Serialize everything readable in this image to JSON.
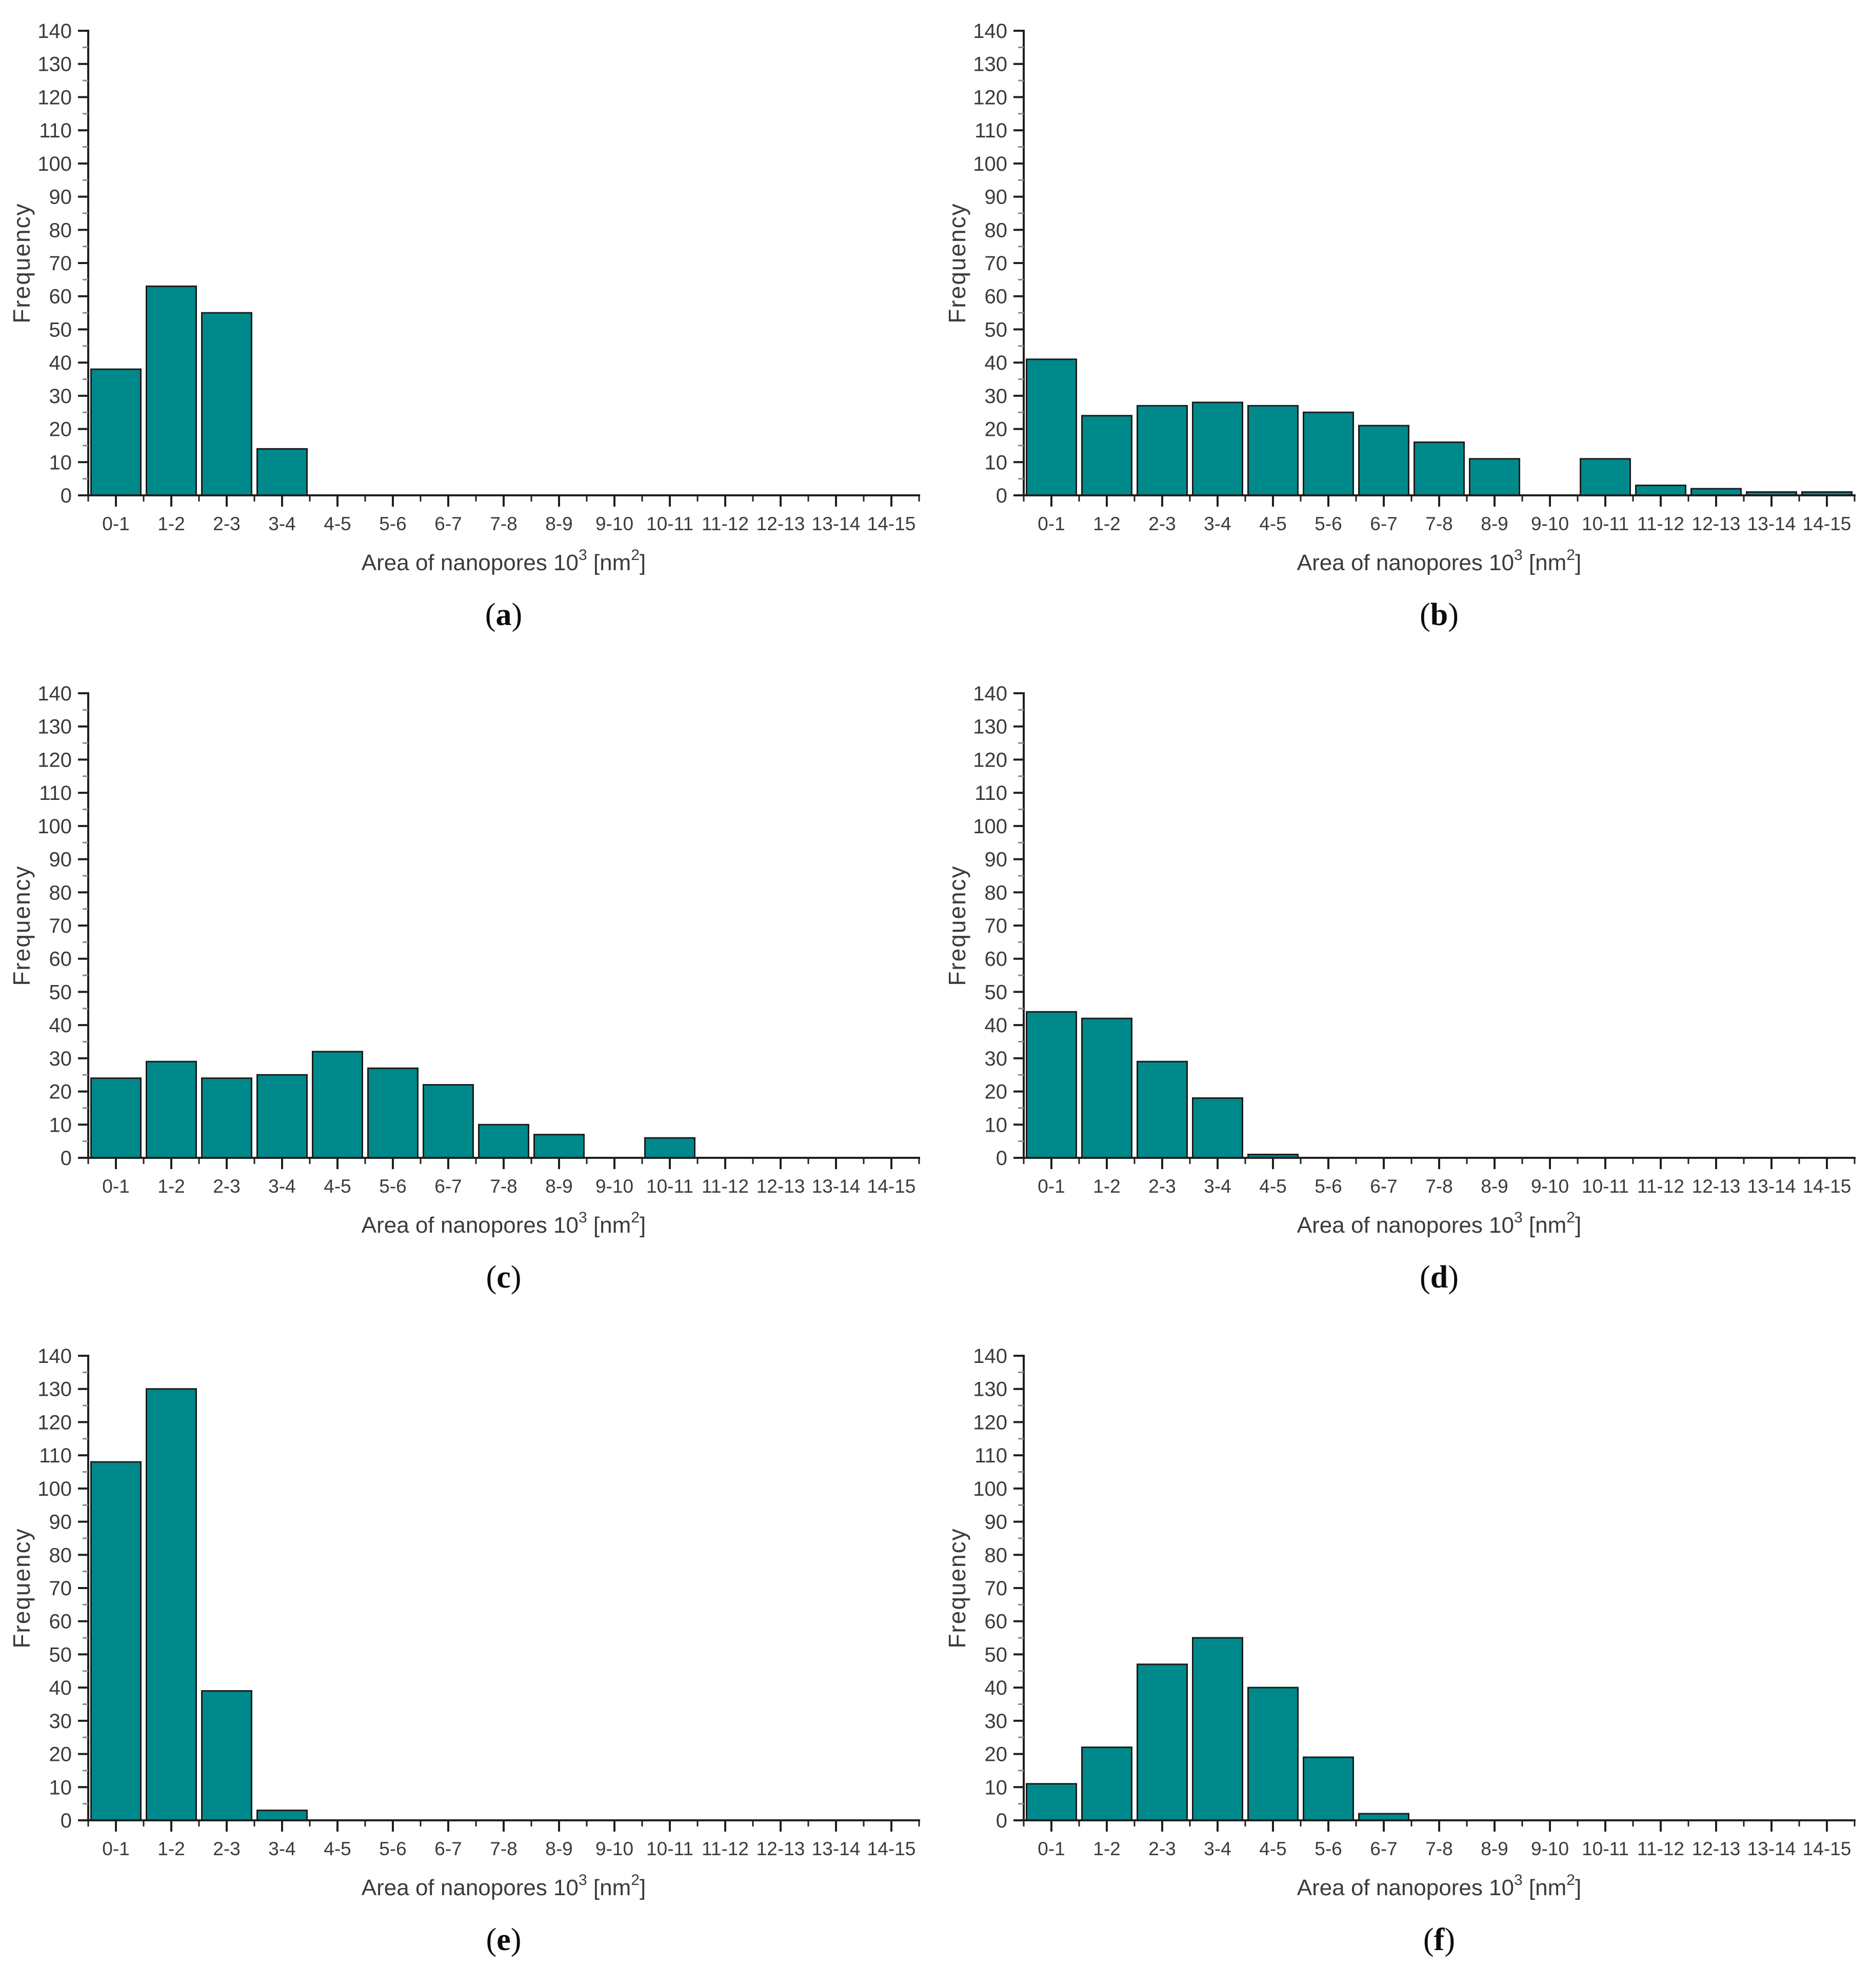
{
  "figure": {
    "background": "#ffffff",
    "bar_fill": "#00898b",
    "bar_stroke": "#1c1c1c",
    "axis_color": "#1f1f1f",
    "tick_label_color": "#3a3a40",
    "minor_tick_color": "#8a8a8a",
    "ylabel": "Frequency",
    "xlabel_main": "Area of nanopores 10",
    "xlabel_sup1": "3",
    "xlabel_mid": " [nm",
    "xlabel_sup2": "2",
    "xlabel_end": "]",
    "caption_open": "(",
    "caption_close": ")",
    "y_axis": {
      "min": 0,
      "max": 140,
      "major_step": 10,
      "minor_step": 5
    }
  },
  "chart_data": [
    {
      "type": "bar",
      "panel_letter": "a",
      "title": "",
      "ylabel": "Frequency",
      "xlabel": "Area of nanopores 10³ [nm²]",
      "ylim": [
        0,
        140
      ],
      "grid": false,
      "legend": "none",
      "categories": [
        "0-1",
        "1-2",
        "2-3",
        "3-4",
        "4-5",
        "5-6",
        "6-7",
        "7-8",
        "8-9",
        "9-10",
        "10-11",
        "11-12",
        "12-13",
        "13-14",
        "14-15"
      ],
      "values": [
        38,
        63,
        55,
        14,
        0,
        0,
        0,
        0,
        0,
        0,
        0,
        0,
        0,
        0,
        0
      ]
    },
    {
      "type": "bar",
      "panel_letter": "b",
      "title": "",
      "ylabel": "Frequency",
      "xlabel": "Area of nanopores 10³ [nm²]",
      "ylim": [
        0,
        140
      ],
      "grid": false,
      "legend": "none",
      "categories": [
        "0-1",
        "1-2",
        "2-3",
        "3-4",
        "4-5",
        "5-6",
        "6-7",
        "7-8",
        "8-9",
        "9-10",
        "10-11",
        "11-12",
        "12-13",
        "13-14",
        "14-15"
      ],
      "values": [
        41,
        24,
        27,
        28,
        27,
        25,
        21,
        16,
        11,
        0,
        11,
        3,
        2,
        1,
        1
      ]
    },
    {
      "type": "bar",
      "panel_letter": "c",
      "title": "",
      "ylabel": "Frequency",
      "xlabel": "Area of nanopores 10³ [nm²]",
      "ylim": [
        0,
        140
      ],
      "grid": false,
      "legend": "none",
      "categories": [
        "0-1",
        "1-2",
        "2-3",
        "3-4",
        "4-5",
        "5-6",
        "6-7",
        "7-8",
        "8-9",
        "9-10",
        "10-11",
        "11-12",
        "12-13",
        "13-14",
        "14-15"
      ],
      "values": [
        24,
        29,
        24,
        25,
        32,
        27,
        22,
        10,
        7,
        0,
        6,
        0,
        0,
        0,
        0
      ]
    },
    {
      "type": "bar",
      "panel_letter": "d",
      "title": "",
      "ylabel": "Frequency",
      "xlabel": "Area of nanopores 10³ [nm²]",
      "ylim": [
        0,
        140
      ],
      "grid": false,
      "legend": "none",
      "categories": [
        "0-1",
        "1-2",
        "2-3",
        "3-4",
        "4-5",
        "5-6",
        "6-7",
        "7-8",
        "8-9",
        "9-10",
        "10-11",
        "11-12",
        "12-13",
        "13-14",
        "14-15"
      ],
      "values": [
        44,
        42,
        29,
        18,
        1,
        0,
        0,
        0,
        0,
        0,
        0,
        0,
        0,
        0,
        0
      ]
    },
    {
      "type": "bar",
      "panel_letter": "e",
      "title": "",
      "ylabel": "Frequency",
      "xlabel": "Area of nanopores 10³ [nm²]",
      "ylim": [
        0,
        140
      ],
      "grid": false,
      "legend": "none",
      "categories": [
        "0-1",
        "1-2",
        "2-3",
        "3-4",
        "4-5",
        "5-6",
        "6-7",
        "7-8",
        "8-9",
        "9-10",
        "10-11",
        "11-12",
        "12-13",
        "13-14",
        "14-15"
      ],
      "values": [
        108,
        130,
        39,
        3,
        0,
        0,
        0,
        0,
        0,
        0,
        0,
        0,
        0,
        0,
        0
      ]
    },
    {
      "type": "bar",
      "panel_letter": "f",
      "title": "",
      "ylabel": "Frequency",
      "xlabel": "Area of nanopores 10³ [nm²]",
      "ylim": [
        0,
        140
      ],
      "grid": false,
      "legend": "none",
      "categories": [
        "0-1",
        "1-2",
        "2-3",
        "3-4",
        "4-5",
        "5-6",
        "6-7",
        "7-8",
        "8-9",
        "9-10",
        "10-11",
        "11-12",
        "12-13",
        "13-14",
        "14-15"
      ],
      "values": [
        11,
        22,
        47,
        55,
        40,
        19,
        2,
        0,
        0,
        0,
        0,
        0,
        0,
        0,
        0
      ]
    }
  ]
}
